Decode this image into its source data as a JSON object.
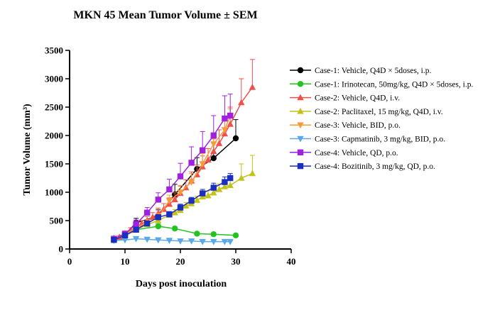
{
  "chart_data": {
    "type": "line",
    "title": "MKN 45 Mean Tumor Volume ± SEM",
    "xlabel": "Days post inoculation",
    "ylabel": "Tumor Volume (mm³)",
    "xlim": [
      0,
      40
    ],
    "ylim": [
      0,
      3500
    ],
    "xticks": [
      "0",
      "10",
      "20",
      "30",
      "40"
    ],
    "yticks": [
      "0",
      "500",
      "1000",
      "1500",
      "2000",
      "2500",
      "3000",
      "3500"
    ],
    "grid": false,
    "legend_position": "right",
    "series": [
      {
        "name": "Case-1: Vehicle, Q4D × 5doses, i.p.",
        "color": "#000000",
        "marker": "circle",
        "x": [
          10,
          12,
          16,
          19,
          23,
          26,
          30
        ],
        "y": [
          250,
          460,
          580,
          960,
          1410,
          1600,
          1950
        ],
        "err": [
          40,
          80,
          110,
          180,
          200,
          280,
          330
        ]
      },
      {
        "name": "Case-1: Irinotecan, 50mg/kg, Q4D × 5doses, i.p.",
        "color": "#22c21f",
        "marker": "circle",
        "x": [
          10,
          12,
          16,
          19,
          23,
          26,
          30
        ],
        "y": [
          230,
          340,
          400,
          360,
          270,
          260,
          240
        ],
        "err": [
          25,
          40,
          40,
          35,
          25,
          25,
          20
        ]
      },
      {
        "name": "Case-2: Vehicle, Q4D, i.v.",
        "color": "#f0504a",
        "marker": "triangle-up",
        "x": [
          8,
          9,
          10,
          11,
          12,
          13,
          14,
          15,
          16,
          17,
          18,
          19,
          20,
          21,
          22,
          23,
          24,
          25,
          26,
          27,
          28,
          29,
          31,
          33
        ],
        "y": [
          190,
          210,
          270,
          330,
          380,
          440,
          500,
          560,
          630,
          700,
          790,
          870,
          980,
          1080,
          1200,
          1310,
          1450,
          1570,
          1720,
          1860,
          2030,
          2200,
          2580,
          2850
        ],
        "err": [
          20,
          25,
          35,
          45,
          55,
          60,
          70,
          80,
          90,
          100,
          110,
          120,
          130,
          140,
          160,
          170,
          190,
          200,
          220,
          240,
          260,
          300,
          420,
          490
        ]
      },
      {
        "name": "Case-2: Paclitaxel, 15 mg/kg, Q4D, i.v.",
        "color": "#c2c21a",
        "marker": "triangle-up",
        "x": [
          8,
          10,
          12,
          14,
          16,
          18,
          19,
          20,
          21,
          22,
          23,
          24,
          25,
          26,
          27,
          28,
          29,
          31,
          33
        ],
        "y": [
          170,
          230,
          340,
          430,
          500,
          600,
          640,
          680,
          760,
          800,
          860,
          920,
          940,
          990,
          1050,
          1100,
          1120,
          1250,
          1330
        ],
        "err": [
          15,
          20,
          30,
          35,
          40,
          50,
          55,
          55,
          60,
          70,
          70,
          80,
          85,
          90,
          95,
          100,
          130,
          250,
          320
        ]
      },
      {
        "name": "Case-3: Vehicle, BID, p.o.",
        "color": "#f79a3c",
        "marker": "triangle-down",
        "x": [
          8,
          10,
          12,
          14,
          16,
          18,
          20,
          22,
          24,
          26,
          28,
          29
        ],
        "y": [
          160,
          250,
          380,
          460,
          560,
          850,
          1000,
          1180,
          1500,
          1850,
          2100,
          2350
        ],
        "err": [
          15,
          30,
          50,
          60,
          70,
          100,
          120,
          150,
          180,
          200,
          150,
          120
        ]
      },
      {
        "name": "Case-3: Capmatinib, 3 mg/kg, BID, p.o.",
        "color": "#5aa8e8",
        "marker": "triangle-down",
        "x": [
          8,
          10,
          12,
          14,
          16,
          18,
          20,
          22,
          24,
          26,
          28,
          29
        ],
        "y": [
          150,
          160,
          180,
          170,
          160,
          150,
          140,
          140,
          130,
          130,
          130,
          130
        ],
        "err": [
          10,
          12,
          15,
          15,
          15,
          12,
          12,
          12,
          10,
          10,
          10,
          10
        ]
      },
      {
        "name": "Case-4: Vehicle, QD, p.o.",
        "color": "#a020e0",
        "marker": "square",
        "x": [
          8,
          10,
          12,
          14,
          16,
          18,
          20,
          22,
          24,
          26,
          28,
          29
        ],
        "y": [
          180,
          270,
          440,
          640,
          870,
          1050,
          1280,
          1520,
          1740,
          2000,
          2300,
          2350
        ],
        "err": [
          20,
          40,
          70,
          90,
          120,
          180,
          230,
          280,
          330,
          350,
          400,
          380
        ]
      },
      {
        "name": "Case-4: Bozitinib, 3 mg/kg, QD, p.o.",
        "color": "#1a2fc0",
        "marker": "square",
        "x": [
          8,
          10,
          12,
          14,
          16,
          18,
          20,
          22,
          24,
          26,
          28,
          29
        ],
        "y": [
          160,
          240,
          340,
          450,
          560,
          610,
          730,
          850,
          980,
          1080,
          1180,
          1250
        ],
        "err": [
          15,
          20,
          30,
          40,
          45,
          50,
          60,
          60,
          70,
          80,
          90,
          80
        ]
      }
    ]
  }
}
